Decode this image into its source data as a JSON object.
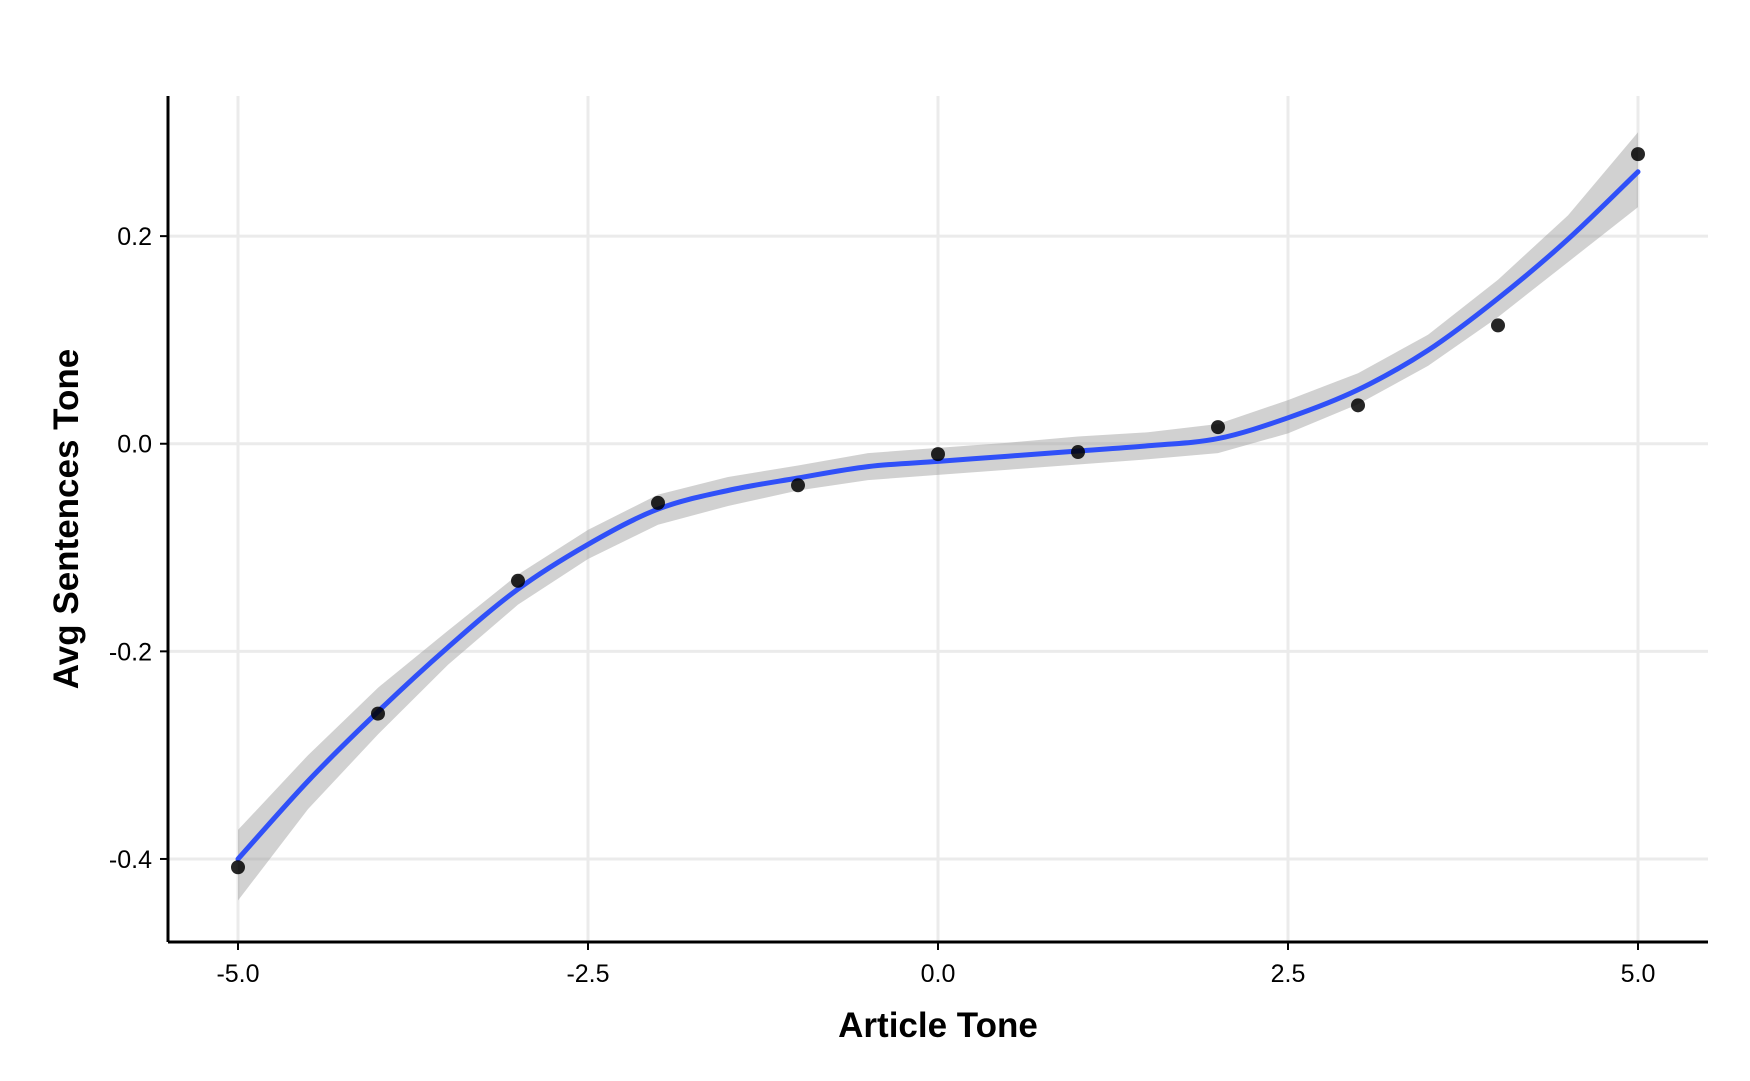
{
  "chart_data": {
    "type": "scatter",
    "xlabel": "Article Tone",
    "ylabel": "Avg Sentences Tone",
    "xlim": [
      -5.5,
      5.5
    ],
    "ylim": [
      -0.48,
      0.335
    ],
    "x_ticks": [
      -5.0,
      -2.5,
      0.0,
      2.5,
      5.0
    ],
    "x_tick_labels": [
      "-5.0",
      "-2.5",
      "0.0",
      "2.5",
      "5.0"
    ],
    "y_ticks": [
      -0.4,
      -0.2,
      0.0,
      0.2
    ],
    "y_tick_labels": [
      "-0.4",
      "-0.2",
      "0.0",
      "0.2"
    ],
    "grid": true,
    "legend": "none",
    "points": {
      "x": [
        -5,
        -4,
        -3,
        -2,
        -1,
        0,
        1,
        2,
        3,
        4,
        5
      ],
      "y": [
        -0.408,
        -0.26,
        -0.132,
        -0.057,
        -0.04,
        -0.01,
        -0.008,
        0.016,
        0.037,
        0.114,
        0.279
      ],
      "color": "#000000"
    },
    "smooth": {
      "color": "#3050f8",
      "band_color": "#999999",
      "x": [
        -5.0,
        -4.5,
        -4.0,
        -3.5,
        -3.0,
        -2.5,
        -2.0,
        -1.5,
        -1.0,
        -0.5,
        0.0,
        0.5,
        1.0,
        1.5,
        2.0,
        2.5,
        3.0,
        3.5,
        4.0,
        4.5,
        5.0
      ],
      "y": [
        -0.4,
        -0.325,
        -0.258,
        -0.196,
        -0.14,
        -0.097,
        -0.063,
        -0.045,
        -0.033,
        -0.022,
        -0.017,
        -0.012,
        -0.007,
        -0.002,
        0.005,
        0.025,
        0.052,
        0.09,
        0.14,
        0.197,
        0.262
      ],
      "lower": [
        -0.44,
        -0.352,
        -0.28,
        -0.213,
        -0.155,
        -0.111,
        -0.078,
        -0.06,
        -0.045,
        -0.035,
        -0.03,
        -0.025,
        -0.02,
        -0.015,
        -0.009,
        0.01,
        0.038,
        0.075,
        0.122,
        0.175,
        0.228
      ],
      "upper": [
        -0.372,
        -0.3,
        -0.235,
        -0.18,
        -0.126,
        -0.083,
        -0.049,
        -0.032,
        -0.021,
        -0.009,
        -0.004,
        0.001,
        0.007,
        0.011,
        0.019,
        0.042,
        0.068,
        0.105,
        0.158,
        0.22,
        0.3
      ]
    }
  }
}
